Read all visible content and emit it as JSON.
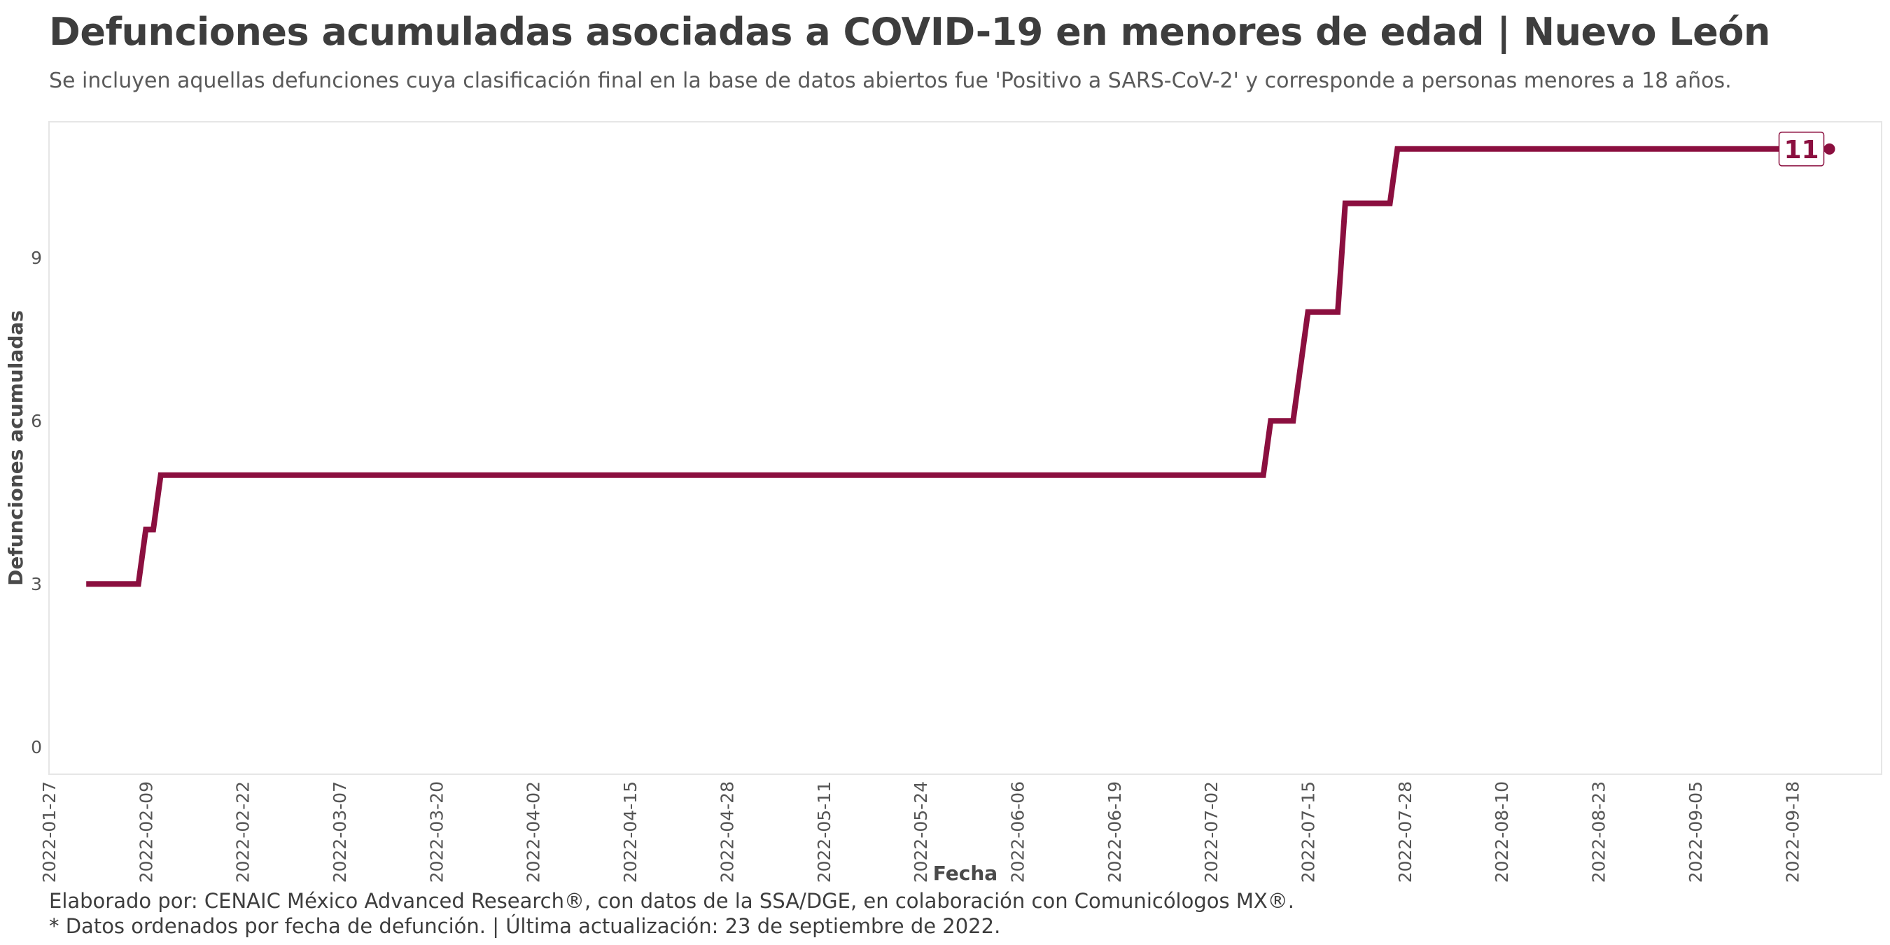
{
  "header": {
    "title": "Defunciones acumuladas asociadas a COVID-19 en menores de edad | Nuevo León",
    "subtitle": "Se incluyen aquellas defunciones cuya clasificación final en la base de datos abiertos fue 'Positivo a SARS-CoV-2' y corresponde a personas menores a 18 años."
  },
  "footer": {
    "line1": "Elaborado por: CENAIC México Advanced Research®, con datos de la SSA/DGE, en colaboración con Comunicólogos MX®.",
    "line2": "* Datos ordenados por fecha de defunción. | Última actualización: 23 de septiembre de 2022."
  },
  "colors": {
    "line": "#8b0f3f",
    "panel_border": "#e6e6e6",
    "text": "#444444"
  },
  "chart_data": {
    "type": "line",
    "step": true,
    "title": "Defunciones acumuladas asociadas a COVID-19 en menores de edad | Nuevo León",
    "xlabel": "Fecha",
    "ylabel": "Defunciones acumuladas",
    "xlim": [
      "2022-01-27",
      "2022-09-30"
    ],
    "ylim": [
      -0.5,
      11.5
    ],
    "yticks": [
      0,
      3,
      6,
      9
    ],
    "xticks": [
      "2022-01-27",
      "2022-02-09",
      "2022-02-22",
      "2022-03-07",
      "2022-03-20",
      "2022-04-02",
      "2022-04-15",
      "2022-04-28",
      "2022-05-11",
      "2022-05-24",
      "2022-06-06",
      "2022-06-19",
      "2022-07-02",
      "2022-07-15",
      "2022-07-28",
      "2022-08-10",
      "2022-08-23",
      "2022-09-05",
      "2022-09-18"
    ],
    "grid": false,
    "series": [
      {
        "name": "Defunciones acumuladas",
        "points": [
          {
            "x": "2022-02-01",
            "y": 3
          },
          {
            "x": "2022-02-08",
            "y": 3
          },
          {
            "x": "2022-02-09",
            "y": 4
          },
          {
            "x": "2022-02-10",
            "y": 4
          },
          {
            "x": "2022-02-11",
            "y": 5
          },
          {
            "x": "2022-07-09",
            "y": 5
          },
          {
            "x": "2022-07-10",
            "y": 6
          },
          {
            "x": "2022-07-13",
            "y": 6
          },
          {
            "x": "2022-07-15",
            "y": 8
          },
          {
            "x": "2022-07-19",
            "y": 8
          },
          {
            "x": "2022-07-20",
            "y": 10
          },
          {
            "x": "2022-07-26",
            "y": 10
          },
          {
            "x": "2022-07-27",
            "y": 11
          },
          {
            "x": "2022-09-23",
            "y": 11
          }
        ]
      }
    ],
    "end_label": "11"
  }
}
